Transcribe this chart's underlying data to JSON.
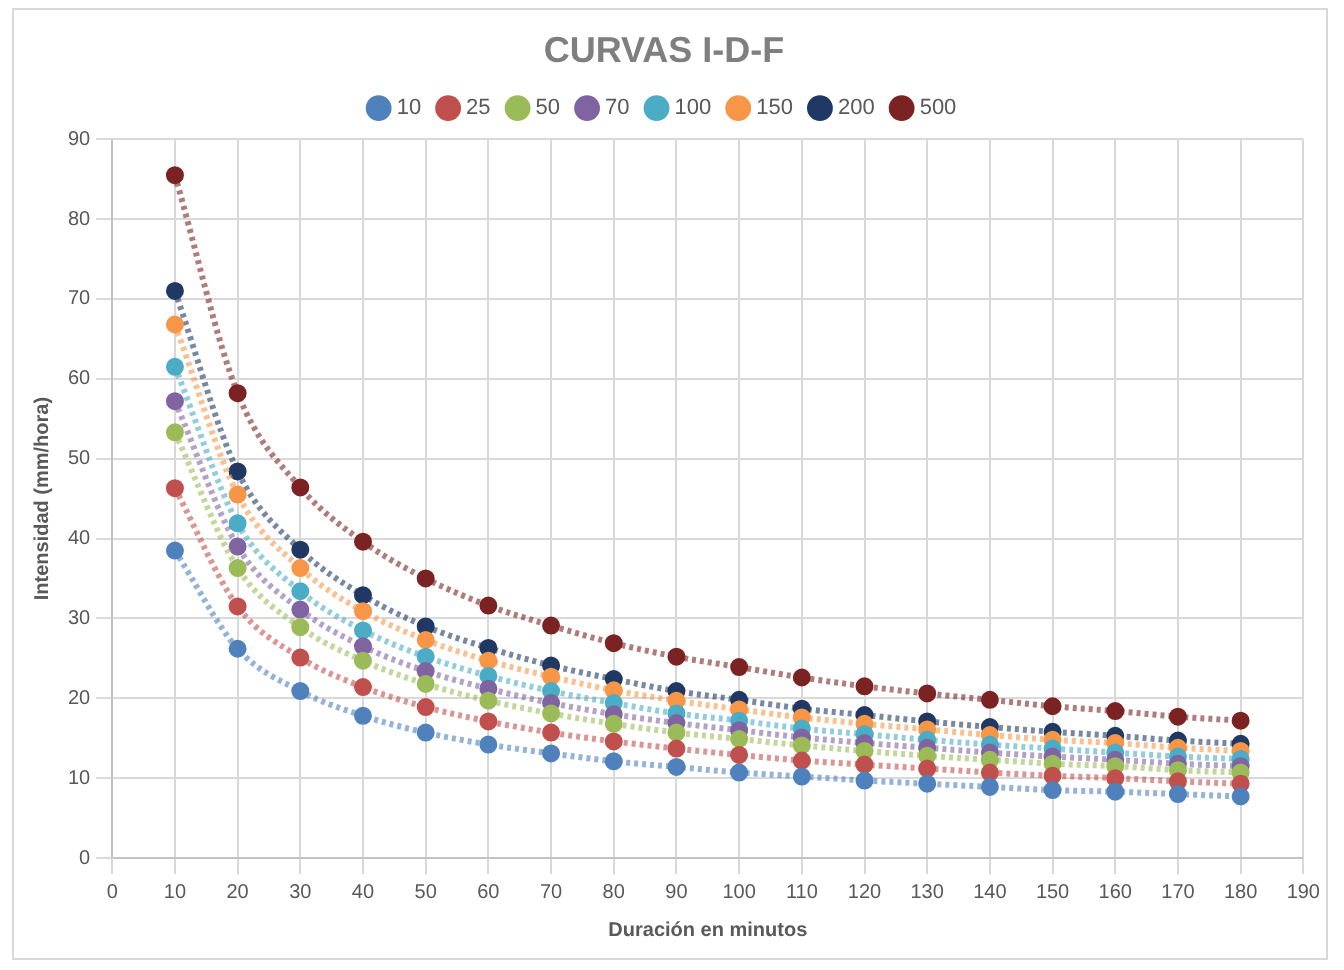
{
  "chart_data": {
    "type": "line",
    "title": "CURVAS I-D-F",
    "xlabel": "Duración en minutos",
    "ylabel": "Intensidad (mm/hora)",
    "x": [
      10,
      20,
      30,
      40,
      50,
      60,
      70,
      80,
      90,
      100,
      110,
      120,
      130,
      140,
      150,
      160,
      170,
      180
    ],
    "xlim": [
      0,
      190
    ],
    "xticks": [
      0,
      10,
      20,
      30,
      40,
      50,
      60,
      70,
      80,
      90,
      100,
      110,
      120,
      130,
      140,
      150,
      160,
      170,
      180,
      190
    ],
    "ylim": [
      0,
      90
    ],
    "yticks": [
      0,
      10,
      20,
      30,
      40,
      50,
      60,
      70,
      80,
      90
    ],
    "grid": true,
    "legend": "top",
    "marker": "circle",
    "line_style": "dotted",
    "series": [
      {
        "name": "10",
        "color": "#4f81bd",
        "values": [
          38.5,
          26.2,
          20.9,
          17.8,
          15.7,
          14.2,
          13.1,
          12.1,
          11.4,
          10.7,
          10.2,
          9.7,
          9.3,
          8.9,
          8.5,
          8.3,
          8.0,
          7.7
        ]
      },
      {
        "name": "25",
        "color": "#c0504d",
        "values": [
          46.3,
          31.5,
          25.1,
          21.4,
          18.9,
          17.1,
          15.7,
          14.6,
          13.7,
          12.9,
          12.2,
          11.7,
          11.2,
          10.7,
          10.3,
          10.0,
          9.6,
          9.3
        ]
      },
      {
        "name": "50",
        "color": "#9bbb59",
        "values": [
          53.3,
          36.3,
          28.9,
          24.7,
          21.8,
          19.7,
          18.1,
          16.8,
          15.7,
          14.9,
          14.1,
          13.4,
          12.8,
          12.3,
          11.8,
          11.5,
          11.0,
          10.7
        ]
      },
      {
        "name": "70",
        "color": "#8064a2",
        "values": [
          57.2,
          39.0,
          31.1,
          26.5,
          23.4,
          21.2,
          19.4,
          18.0,
          16.9,
          16.0,
          15.1,
          14.4,
          13.8,
          13.2,
          12.7,
          12.3,
          11.8,
          11.5
        ]
      },
      {
        "name": "100",
        "color": "#4bacc6",
        "values": [
          61.5,
          41.9,
          33.4,
          28.5,
          25.2,
          22.8,
          20.9,
          19.4,
          18.1,
          17.2,
          16.2,
          15.5,
          14.8,
          14.2,
          13.7,
          13.2,
          12.7,
          12.4
        ]
      },
      {
        "name": "150",
        "color": "#f79646",
        "values": [
          66.8,
          45.5,
          36.3,
          30.9,
          27.3,
          24.7,
          22.7,
          21.0,
          19.7,
          18.6,
          17.6,
          16.8,
          16.1,
          15.4,
          14.8,
          14.4,
          13.8,
          13.4
        ]
      },
      {
        "name": "200",
        "color": "#1f3864",
        "values": [
          71.0,
          48.4,
          38.6,
          32.9,
          29.0,
          26.3,
          24.1,
          22.4,
          20.9,
          19.8,
          18.7,
          17.9,
          17.1,
          16.4,
          15.8,
          15.3,
          14.7,
          14.3
        ]
      },
      {
        "name": "500",
        "color": "#7b2323",
        "values": [
          85.5,
          58.2,
          46.4,
          39.6,
          35.0,
          31.6,
          29.1,
          26.9,
          25.2,
          23.9,
          22.6,
          21.5,
          20.6,
          19.8,
          19.0,
          18.4,
          17.7,
          17.2
        ]
      }
    ]
  }
}
